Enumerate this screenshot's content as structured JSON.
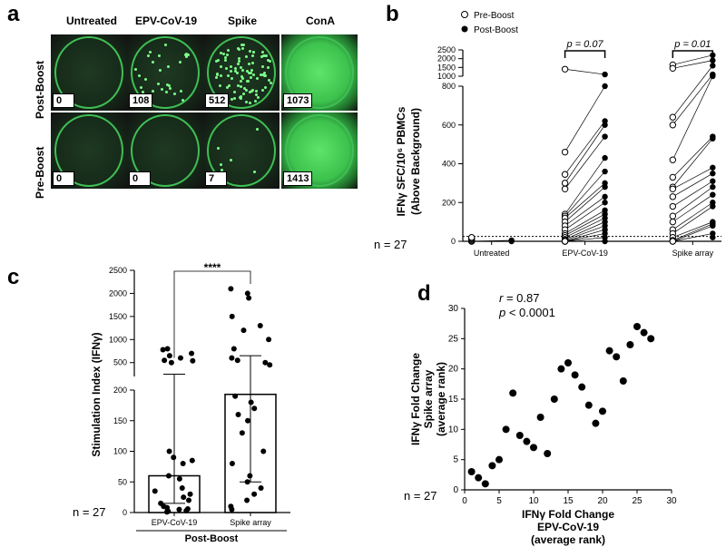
{
  "panel_a": {
    "letter": "a",
    "columns": [
      "Untreated",
      "EPV-CoV-19",
      "Spike",
      "ConA"
    ],
    "rows": [
      {
        "label": "Post-Boost",
        "counts": [
          "0",
          "108",
          "512",
          "1073"
        ]
      },
      {
        "label": "Pre-Boost",
        "counts": [
          "0",
          "0",
          "7",
          "1413"
        ]
      }
    ],
    "spot_density": [
      [
        0,
        0.15,
        0.55,
        1.0
      ],
      [
        0,
        0,
        0.02,
        1.0
      ]
    ]
  },
  "chart_data": [
    {
      "id": "b",
      "letter": "b",
      "type": "scatter",
      "categories": [
        "Untreated",
        "EPV-CoV-19",
        "Spike array"
      ],
      "ylabel": "IFNγ SFC/10⁶ PBMCs (Above Background)",
      "y_lower_ticks": [
        "0",
        "200",
        "400",
        "600",
        "800"
      ],
      "y_upper_ticks": [
        "1000",
        "1500",
        "2000",
        "2500"
      ],
      "ylim_lower": [
        0,
        800
      ],
      "ylim_upper": [
        800,
        2500
      ],
      "series": [
        {
          "name": "Pre-Boost",
          "marker": "open-circle",
          "untreated": [
            0,
            0,
            5,
            10,
            15,
            20
          ],
          "epv": [
            1400,
            460,
            345,
            300,
            270,
            140,
            130,
            120,
            100,
            80,
            60,
            40,
            30,
            20,
            10,
            5,
            0,
            0,
            0,
            0
          ],
          "spike": [
            1650,
            1450,
            640,
            600,
            420,
            330,
            280,
            270,
            230,
            180,
            130,
            100,
            60,
            40,
            20,
            5,
            0,
            0
          ]
        },
        {
          "name": "Post-Boost",
          "marker": "filled-circle",
          "untreated": [
            0,
            5
          ],
          "epv": [
            1100,
            800,
            620,
            600,
            540,
            430,
            360,
            300,
            280,
            230,
            200,
            160,
            140,
            120,
            100,
            80,
            60,
            40,
            20,
            0
          ],
          "spike": [
            2200,
            1900,
            1600,
            1100,
            1000,
            540,
            530,
            380,
            350,
            310,
            280,
            240,
            200,
            180,
            100,
            90,
            80,
            40,
            20
          ]
        }
      ],
      "annotations": [
        "p = 0.07",
        "p = 0.01"
      ],
      "n_label": "n = 27",
      "dotted_line_y": 25
    },
    {
      "id": "c",
      "letter": "c",
      "type": "bar",
      "categories": [
        "EPV-CoV-19",
        "Spike array"
      ],
      "group_label": "Post-Boost",
      "ylabel": "Stimulation Index (IFNγ)",
      "y_lower_ticks": [
        "0",
        "50",
        "100",
        "150",
        "200"
      ],
      "y_upper_ticks": [
        "500",
        "1000",
        "1500",
        "2000",
        "2500"
      ],
      "ylim_lower": [
        0,
        200
      ],
      "ylim_upper": [
        200,
        2500
      ],
      "values": [
        60,
        193
      ],
      "err_low": [
        15,
        50
      ],
      "err_high": [
        250,
        650
      ],
      "points": [
        [
          800,
          780,
          700,
          650,
          600,
          550,
          540,
          500,
          100,
          90,
          85,
          80,
          60,
          55,
          40,
          35,
          30,
          25,
          20,
          15,
          10,
          8,
          6,
          5,
          3,
          2,
          1
        ],
        [
          2100,
          2000,
          1900,
          1500,
          1300,
          1200,
          1000,
          800,
          600,
          550,
          500,
          450,
          190,
          180,
          170,
          160,
          150,
          130,
          100,
          80,
          60,
          50,
          40,
          30,
          20,
          10,
          5
        ]
      ],
      "sig_label": "****",
      "n_label": "n = 27"
    },
    {
      "id": "d",
      "letter": "d",
      "type": "scatter",
      "xlabel_lines": [
        "IFNγ Fold Change",
        "EPV-CoV-19",
        "(average rank)"
      ],
      "ylabel_lines": [
        "IFNγ Fold Change",
        "Spike array",
        "(average rank)"
      ],
      "xlim": [
        0,
        30
      ],
      "ylim": [
        0,
        30
      ],
      "x_ticks": [
        "0",
        "5",
        "10",
        "15",
        "20",
        "25",
        "30"
      ],
      "y_ticks": [
        "0",
        "5",
        "10",
        "15",
        "20",
        "25",
        "30"
      ],
      "r_label": "r",
      "r_value": "= 0.87",
      "p_label": "p",
      "p_value": "< 0.0001",
      "n_label": "n = 27",
      "points": [
        [
          1,
          3
        ],
        [
          2,
          2
        ],
        [
          3,
          1
        ],
        [
          4,
          4
        ],
        [
          5,
          5
        ],
        [
          6,
          10
        ],
        [
          7,
          16
        ],
        [
          8,
          9
        ],
        [
          9,
          8
        ],
        [
          10,
          7
        ],
        [
          11,
          12
        ],
        [
          12,
          6
        ],
        [
          13,
          15
        ],
        [
          14,
          20
        ],
        [
          15,
          21
        ],
        [
          16,
          19
        ],
        [
          17,
          17
        ],
        [
          18,
          14
        ],
        [
          19,
          11
        ],
        [
          20,
          13
        ],
        [
          21,
          23
        ],
        [
          22,
          22
        ],
        [
          23,
          18
        ],
        [
          24,
          24
        ],
        [
          25,
          27
        ],
        [
          26,
          26
        ],
        [
          27,
          25
        ]
      ]
    }
  ]
}
